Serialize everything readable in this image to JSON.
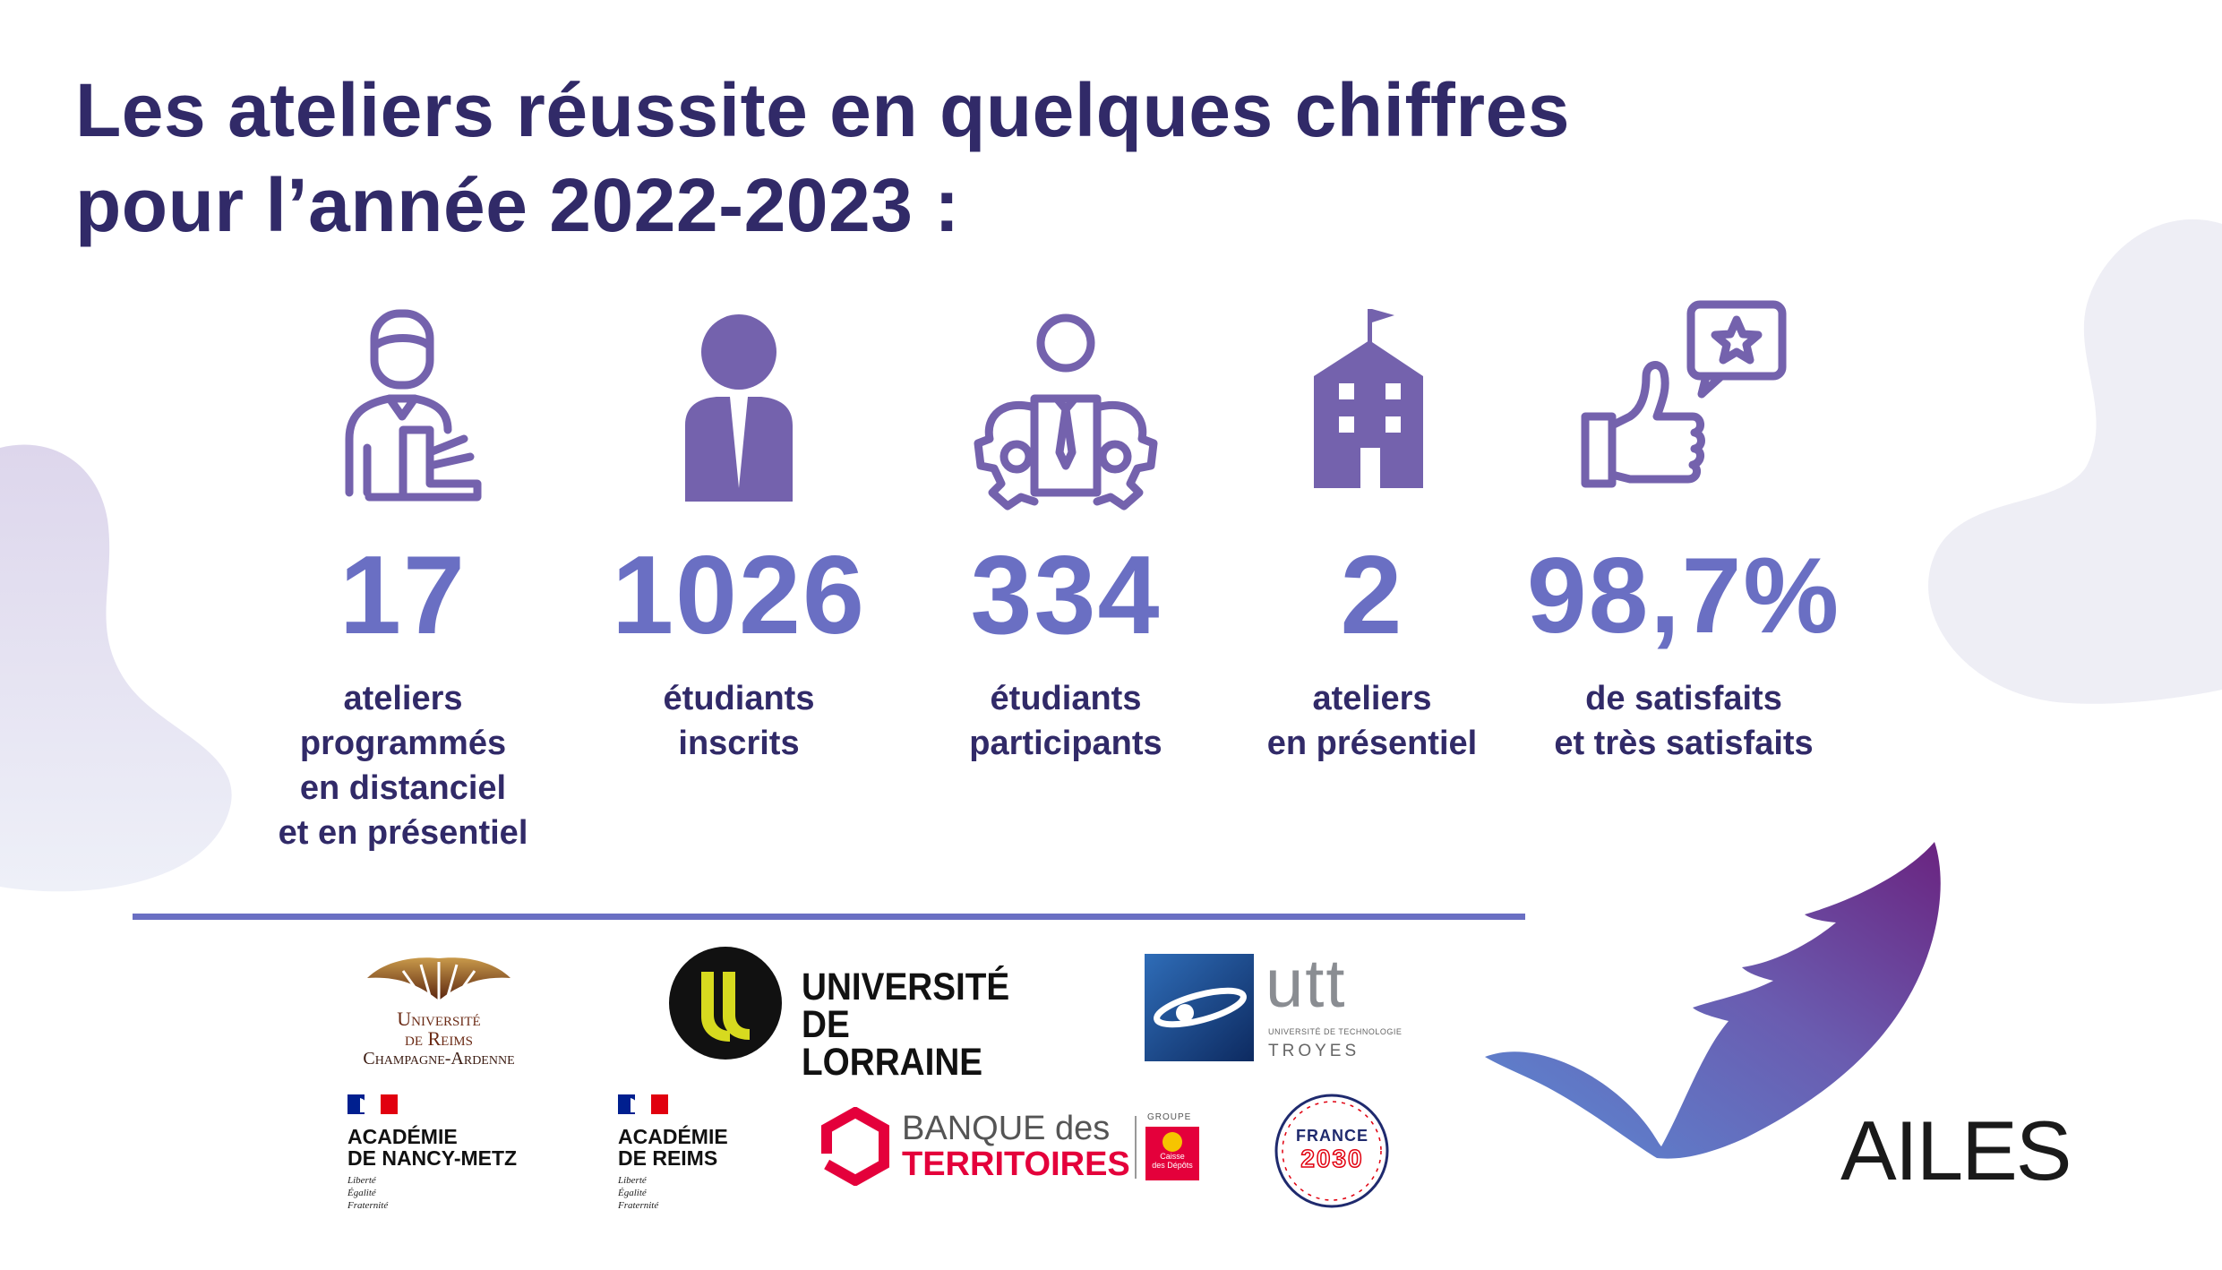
{
  "title": {
    "line1": "Les ateliers réussite en quelques chiffres",
    "line2": "pour l’année 2022-2023 :"
  },
  "colors": {
    "title": "#312a68",
    "number": "#6a6fc3",
    "icon": "#7462ad",
    "divider": "#6a6fc3"
  },
  "stats": [
    {
      "icon": "teacher-desk-icon",
      "value": "17",
      "label": [
        "ateliers",
        "programmés",
        "en distanciel",
        "et en présentiel"
      ]
    },
    {
      "icon": "businessman-icon",
      "value": "1026",
      "label": [
        "étudiants",
        "inscrits"
      ]
    },
    {
      "icon": "team-gears-icon",
      "value": "334",
      "label": [
        "étudiants",
        "participants"
      ]
    },
    {
      "icon": "school-building-icon",
      "value": "2",
      "label": [
        "ateliers",
        "en présentiel"
      ]
    },
    {
      "icon": "thumbs-up-star-icon",
      "value": "98,7%",
      "label": [
        "de satisfaits",
        "et très satisfaits"
      ]
    }
  ],
  "logos": {
    "reims_university": {
      "line1": "Université",
      "line2": "de Reims",
      "line3": "Champagne-Ardenne"
    },
    "lorraine": {
      "line1": "UNIVERSITÉ",
      "line2": "DE LORRAINE"
    },
    "utt": {
      "mark": "utt",
      "subtitle": "UNIVERSITÉ DE TECHNOLOGIE",
      "city": "TROYES"
    },
    "academie_nancy": {
      "name1": "ACADÉMIE",
      "name2": "DE NANCY-METZ",
      "m1": "Liberté",
      "m2": "Égalité",
      "m3": "Fraternité"
    },
    "academie_reims": {
      "name1": "ACADÉMIE",
      "name2": "DE REIMS",
      "m1": "Liberté",
      "m2": "Égalité",
      "m3": "Fraternité"
    },
    "banque": {
      "line1": "BANQUE des",
      "line2": "TERRITOIRES",
      "groupe": "GROUPE",
      "cdc1": "Caisse",
      "cdc2": "des Dépôts"
    },
    "france2030": {
      "line1": "FRANCE",
      "line2": "2030"
    },
    "ailes": {
      "text": "AILES"
    }
  }
}
